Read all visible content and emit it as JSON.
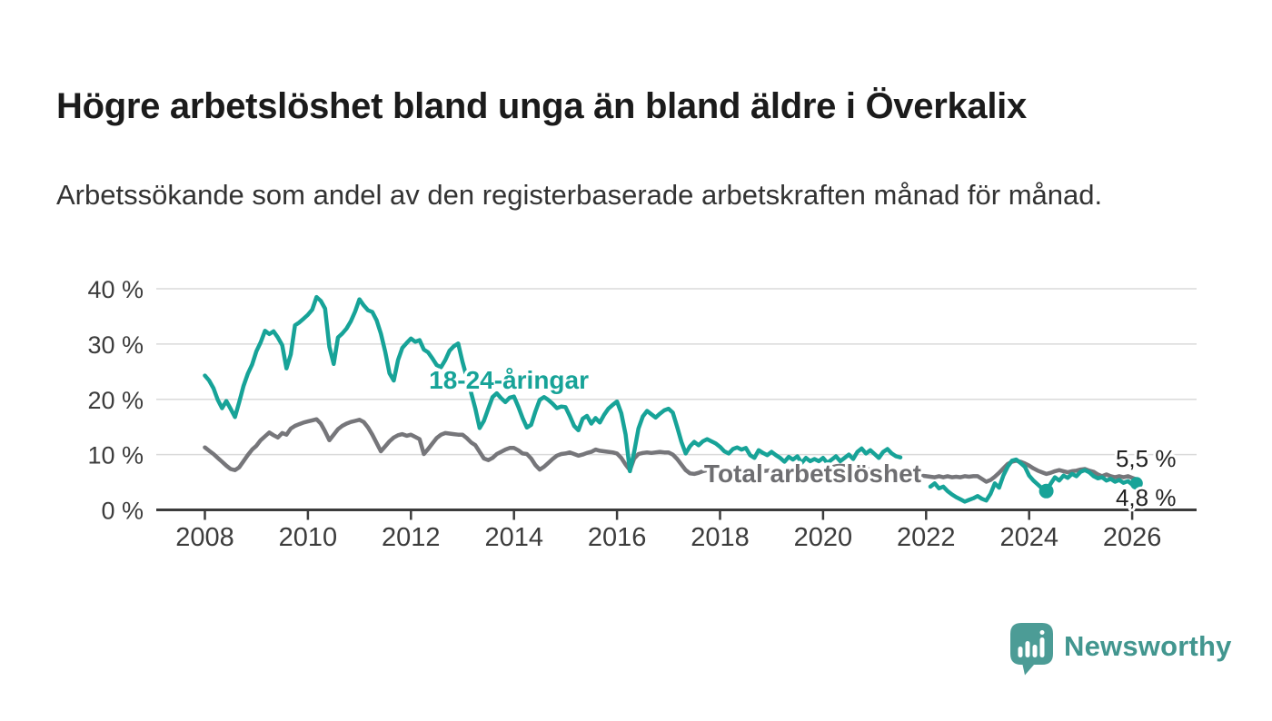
{
  "header": {
    "title": "Högre arbetslöshet bland unga än bland äldre i Överkalix",
    "subtitle": "Arbetssökande som andel av den registerbaserade arbetskraften månad för månad."
  },
  "chart_data": {
    "type": "line",
    "x_unit": "monthly",
    "x_start": {
      "year": 2008,
      "month": 1
    },
    "x_end": {
      "year": 2026,
      "month": 2
    },
    "x_tick_years": [
      2008,
      2010,
      2012,
      2014,
      2016,
      2018,
      2020,
      2022,
      2024,
      2026
    ],
    "y_ticks": [
      {
        "value": 40,
        "label": "40 %"
      },
      {
        "value": 30,
        "label": "30 %"
      },
      {
        "value": 20,
        "label": "20 %"
      },
      {
        "value": 10,
        "label": "10 %"
      },
      {
        "value": 0,
        "label": "0 %"
      }
    ],
    "ylim": [
      0,
      40
    ],
    "xlim": [
      2007.1,
      2027.05
    ],
    "grid": "horizontal",
    "legend_position": "inline-labels",
    "axis_color": "#3c3c3c",
    "grid_color": "#dadada",
    "tick_label_color": "#3c3c3c",
    "series": [
      {
        "name": "Total arbetslöshet",
        "color": "#76767a",
        "values": [
          11.3,
          10.7,
          10.1,
          9.4,
          8.7,
          8.0,
          7.4,
          7.2,
          7.7,
          8.8,
          9.9,
          10.9,
          11.6,
          12.6,
          13.3,
          14.0,
          13.5,
          13.1,
          13.9,
          13.6,
          14.7,
          15.2,
          15.5,
          15.8,
          16.0,
          16.2,
          16.4,
          15.6,
          14.2,
          12.6,
          13.6,
          14.6,
          15.2,
          15.6,
          15.9,
          16.1,
          16.3,
          15.9,
          14.9,
          13.6,
          12.1,
          10.6,
          11.5,
          12.4,
          13.1,
          13.5,
          13.7,
          13.4,
          13.6,
          13.2,
          12.8,
          10.1,
          11.0,
          12.0,
          13.0,
          13.6,
          13.9,
          13.8,
          13.7,
          13.6,
          13.6,
          13.0,
          12.2,
          11.7,
          10.5,
          9.3,
          9.0,
          9.4,
          10.1,
          10.5,
          10.9,
          11.2,
          11.2,
          10.8,
          10.2,
          10.1,
          9.3,
          8.1,
          7.3,
          7.8,
          8.5,
          9.2,
          9.8,
          10.1,
          10.2,
          10.4,
          10.1,
          9.8,
          10.0,
          10.3,
          10.5,
          10.9,
          10.7,
          10.6,
          10.5,
          10.4,
          10.2,
          9.4,
          8.2,
          7.2,
          9.3,
          10.1,
          10.3,
          10.4,
          10.3,
          10.4,
          10.5,
          10.4,
          10.4,
          10.0,
          9.2,
          8.2,
          7.2,
          6.6,
          6.5,
          6.7,
          7.0,
          7.2,
          7.1,
          7.0,
          7.0,
          6.9,
          6.8,
          6.7,
          6.6,
          6.6,
          6.7,
          6.8,
          6.9,
          7.0,
          7.0,
          7.1,
          7.2,
          7.1,
          7.0,
          6.9,
          6.8,
          6.8,
          6.9,
          7.0,
          7.1,
          7.2,
          7.2,
          7.3,
          7.4,
          7.5,
          7.7,
          7.9,
          8.0,
          7.9,
          7.8,
          7.7,
          7.6,
          7.5,
          7.4,
          7.3,
          7.2,
          7.1,
          7.0,
          6.9,
          6.8,
          6.7,
          6.6,
          6.5,
          6.4,
          6.3,
          6.3,
          6.2,
          6.1,
          6.0,
          5.9,
          6.1,
          5.9,
          6.1,
          5.9,
          6.0,
          5.9,
          6.1,
          6.0,
          6.1,
          6.1,
          5.6,
          5.1,
          5.4,
          6.0,
          6.7,
          7.5,
          8.3,
          8.7,
          8.9,
          8.7,
          8.4,
          8.0,
          7.5,
          7.1,
          6.8,
          6.5,
          6.7,
          7.0,
          7.2,
          7.0,
          6.8,
          7.0,
          7.1,
          7.3,
          7.4,
          7.1,
          6.9,
          6.4,
          6.1,
          6.4,
          6.1,
          5.9,
          6.1,
          5.9,
          6.1,
          5.8,
          5.5
        ]
      },
      {
        "name": "18-24-åringar",
        "color": "#17a398",
        "values": [
          24.3,
          23.4,
          22.0,
          19.9,
          18.4,
          19.7,
          18.3,
          16.8,
          19.5,
          22.4,
          24.6,
          26.3,
          28.7,
          30.3,
          32.4,
          31.8,
          32.3,
          31.2,
          29.8,
          25.6,
          28.1,
          33.4,
          33.9,
          34.6,
          35.3,
          36.2,
          38.5,
          37.8,
          36.4,
          29.5,
          26.4,
          31.2,
          31.9,
          32.8,
          34.1,
          35.9,
          38.1,
          37.0,
          36.1,
          35.8,
          34.3,
          31.9,
          28.6,
          24.7,
          23.4,
          27.1,
          29.3,
          30.2,
          31.0,
          30.4,
          30.7,
          29.0,
          28.5,
          27.4,
          26.2,
          25.8,
          27.1,
          28.8,
          29.6,
          30.1,
          26.8,
          24.0,
          21.2,
          18.3,
          14.8,
          16.1,
          18.3,
          20.4,
          21.1,
          20.2,
          19.5,
          20.3,
          20.5,
          18.7,
          16.6,
          14.9,
          15.4,
          17.8,
          19.9,
          20.4,
          19.9,
          19.2,
          18.4,
          18.7,
          18.6,
          17.0,
          15.2,
          14.4,
          16.5,
          17.0,
          15.6,
          16.6,
          15.8,
          17.2,
          18.3,
          19.0,
          19.6,
          17.5,
          13.6,
          7.0,
          10.5,
          14.7,
          16.9,
          17.9,
          17.3,
          16.7,
          17.4,
          18.0,
          18.3,
          17.6,
          15.0,
          12.3,
          10.2,
          11.5,
          12.3,
          11.7,
          12.4,
          12.8,
          12.4,
          12.0,
          11.4,
          10.6,
          10.2,
          11.0,
          11.3,
          10.9,
          11.2,
          9.9,
          9.4,
          10.8,
          10.3,
          9.9,
          10.5,
          9.9,
          9.4,
          8.7,
          9.6,
          9.1,
          9.7,
          8.5,
          9.4,
          8.8,
          9.2,
          8.8,
          9.4,
          8.5,
          9.1,
          9.7,
          8.8,
          9.4,
          10.0,
          9.2,
          10.5,
          11.1,
          10.2,
          10.8,
          10.1,
          9.4,
          10.5,
          11.0,
          10.2,
          9.7,
          9.5,
          null,
          null,
          null,
          null,
          null,
          null,
          4.2,
          4.8,
          3.9,
          4.2,
          3.4,
          2.8,
          2.3,
          1.9,
          1.5,
          1.8,
          2.1,
          2.5,
          2.0,
          1.7,
          2.9,
          4.8,
          4.0,
          6.2,
          7.8,
          8.9,
          9.1,
          8.5,
          7.8,
          6.2,
          5.3,
          4.6,
          3.9,
          3.4,
          4.7,
          5.9,
          5.3,
          6.2,
          5.8,
          6.5,
          6.1,
          6.9,
          7.2,
          6.8,
          6.1,
          5.7,
          5.9,
          5.3,
          5.6,
          5.1,
          5.4,
          4.9,
          5.2,
          4.6,
          4.8
        ]
      }
    ],
    "markers": [
      {
        "series": "18-24-åringar",
        "month_index": 196,
        "radius": 8
      },
      {
        "series": "18-24-åringar",
        "month_index": 217,
        "radius": 7
      }
    ],
    "series_labels": [
      {
        "text": "18-24-åringar",
        "x_year": 2012.35,
        "y_value": 21.9,
        "color": "#17a398"
      },
      {
        "text": "Total arbetslöshet",
        "x_year": 2017.69,
        "y_value": 5.0,
        "color": "#6e6e71"
      }
    ],
    "end_labels": [
      {
        "text": "5,5 %",
        "series": "Total arbetslöshet",
        "x_year": 2025.68,
        "y_value": 7.8,
        "color": "#222222"
      },
      {
        "text": "4,8 %",
        "series": "18-24-åringar",
        "x_year": 2025.68,
        "y_value": 0.75,
        "color": "#222222"
      }
    ]
  },
  "footer": {
    "brand": "Newsworthy",
    "brand_color": "#42968f",
    "logo_color": "#4c9c96",
    "logo_icon": "speech-bubble-bar-chart"
  }
}
